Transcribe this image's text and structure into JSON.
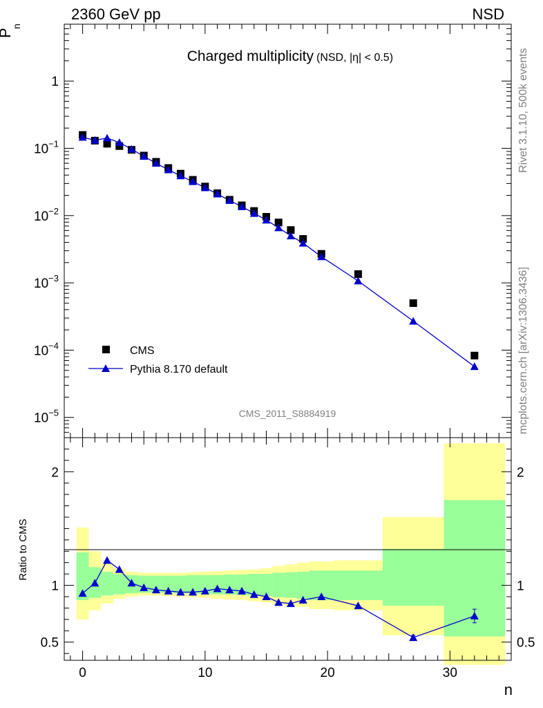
{
  "header": {
    "left": "2360 GeV pp",
    "right": "NSD"
  },
  "side_labels": {
    "rivet": "Rivet 3.1.10,  500k events",
    "mcplots": "mcplots.cern.ch [arXiv:1306.3436]"
  },
  "chart_data": [
    {
      "type": "scatter",
      "title": "Charged multiplicity",
      "subtitle": "(NSD, |η| < 0.5)",
      "ylabel": "P_n",
      "xlim": [
        -1.5,
        35
      ],
      "ylim": [
        5e-06,
        7
      ],
      "yscale": "log",
      "ytick_labels": [
        "1",
        "10^-1",
        "10^-2",
        "10^-3",
        "10^-4",
        "10^-5"
      ],
      "watermark": "CMS_2011_S8884919",
      "legend_position": "bottom-left",
      "series": [
        {
          "name": "CMS",
          "marker": "square",
          "color": "#000000",
          "x": [
            0,
            1,
            2,
            3,
            4,
            5,
            6,
            7,
            8,
            9,
            10,
            11,
            12,
            13,
            14,
            15,
            16,
            17,
            18,
            19.5,
            22.5,
            27,
            32
          ],
          "y": [
            0.158,
            0.13,
            0.117,
            0.108,
            0.095,
            0.078,
            0.063,
            0.051,
            0.042,
            0.034,
            0.027,
            0.0215,
            0.0172,
            0.0142,
            0.0117,
            0.0096,
            0.0079,
            0.0061,
            0.0045,
            0.0027,
            0.00135,
            0.0005,
            8.3e-05
          ]
        },
        {
          "name": "Pythia 8.170 default",
          "marker": "triangle",
          "color": "#0000cc",
          "x": [
            0,
            1,
            2,
            3,
            4,
            5,
            6,
            7,
            8,
            9,
            10,
            11,
            12,
            13,
            14,
            15,
            16,
            17,
            18,
            19.5,
            22.5,
            27,
            32
          ],
          "y": [
            0.146,
            0.132,
            0.142,
            0.122,
            0.097,
            0.076,
            0.06,
            0.048,
            0.039,
            0.032,
            0.026,
            0.021,
            0.0168,
            0.0136,
            0.0108,
            0.0086,
            0.0066,
            0.005,
            0.0039,
            0.00245,
            0.00107,
            0.00027,
            5.7e-05
          ]
        }
      ]
    },
    {
      "type": "line",
      "ylabel": "Ratio to CMS",
      "xlabel": "n",
      "xlim": [
        -1.5,
        35
      ],
      "ylim": [
        0.34,
        2.3
      ],
      "yticks": [
        0.5,
        1,
        2
      ],
      "ytick_labels": [
        "0.5",
        "1",
        "2"
      ],
      "xticks": [
        0,
        10,
        20,
        30
      ],
      "xtick_labels": [
        "0",
        "10",
        "20",
        "30"
      ],
      "bands": [
        {
          "x0": -0.5,
          "x1": 0.5,
          "stat": [
            0.87,
            1.29
          ],
          "total": [
            0.7,
            1.51
          ]
        },
        {
          "x0": 0.5,
          "x1": 1.5,
          "stat": [
            0.89,
            1.16
          ],
          "total": [
            0.78,
            1.3
          ]
        },
        {
          "x0": 1.5,
          "x1": 2.5,
          "stat": [
            0.91,
            1.12
          ],
          "total": [
            0.84,
            1.2
          ]
        },
        {
          "x0": 2.5,
          "x1": 3.5,
          "stat": [
            0.92,
            1.1
          ],
          "total": [
            0.88,
            1.15
          ]
        },
        {
          "x0": 3.5,
          "x1": 4.5,
          "stat": [
            0.93,
            1.09
          ],
          "total": [
            0.9,
            1.12
          ]
        },
        {
          "x0": 4.5,
          "x1": 5.5,
          "stat": [
            0.935,
            1.085
          ],
          "total": [
            0.91,
            1.11
          ]
        },
        {
          "x0": 5.5,
          "x1": 6.5,
          "stat": [
            0.935,
            1.085
          ],
          "total": [
            0.91,
            1.11
          ]
        },
        {
          "x0": 6.5,
          "x1": 7.5,
          "stat": [
            0.935,
            1.085
          ],
          "total": [
            0.905,
            1.11
          ]
        },
        {
          "x0": 7.5,
          "x1": 8.5,
          "stat": [
            0.93,
            1.085
          ],
          "total": [
            0.9,
            1.11
          ]
        },
        {
          "x0": 8.5,
          "x1": 9.5,
          "stat": [
            0.93,
            1.09
          ],
          "total": [
            0.895,
            1.115
          ]
        },
        {
          "x0": 9.5,
          "x1": 10.5,
          "stat": [
            0.925,
            1.09
          ],
          "total": [
            0.89,
            1.12
          ]
        },
        {
          "x0": 10.5,
          "x1": 11.5,
          "stat": [
            0.92,
            1.09
          ],
          "total": [
            0.88,
            1.125
          ]
        },
        {
          "x0": 11.5,
          "x1": 12.5,
          "stat": [
            0.92,
            1.095
          ],
          "total": [
            0.875,
            1.13
          ]
        },
        {
          "x0": 12.5,
          "x1": 13.5,
          "stat": [
            0.915,
            1.095
          ],
          "total": [
            0.87,
            1.135
          ]
        },
        {
          "x0": 13.5,
          "x1": 14.5,
          "stat": [
            0.91,
            1.1
          ],
          "total": [
            0.86,
            1.14
          ]
        },
        {
          "x0": 14.5,
          "x1": 15.5,
          "stat": [
            0.905,
            1.1
          ],
          "total": [
            0.85,
            1.15
          ]
        },
        {
          "x0": 15.5,
          "x1": 16.5,
          "stat": [
            0.895,
            1.11
          ],
          "total": [
            0.83,
            1.17
          ]
        },
        {
          "x0": 16.5,
          "x1": 17.5,
          "stat": [
            0.89,
            1.115
          ],
          "total": [
            0.82,
            1.185
          ]
        },
        {
          "x0": 17.5,
          "x1": 18.5,
          "stat": [
            0.88,
            1.12
          ],
          "total": [
            0.81,
            1.2
          ]
        },
        {
          "x0": 18.5,
          "x1": 20.5,
          "stat": [
            0.87,
            1.13
          ],
          "total": [
            0.79,
            1.21
          ]
        },
        {
          "x0": 20.5,
          "x1": 24.5,
          "stat": [
            0.87,
            1.13
          ],
          "total": [
            0.78,
            1.22
          ]
        },
        {
          "x0": 24.5,
          "x1": 29.5,
          "stat": [
            0.82,
            1.32
          ],
          "total": [
            0.56,
            1.6
          ]
        },
        {
          "x0": 29.5,
          "x1": 34.5,
          "stat": [
            0.55,
            1.75
          ],
          "total": [
            0.3,
            2.25
          ]
        }
      ],
      "series": [
        {
          "name": "Pythia 8.170 default",
          "color": "#0000cc",
          "x": [
            0,
            1,
            2,
            3,
            4,
            5,
            6,
            7,
            8,
            9,
            10,
            11,
            12,
            13,
            14,
            15,
            16,
            17,
            18,
            19.5,
            22.5,
            27,
            32
          ],
          "y": [
            0.93,
            1.02,
            1.22,
            1.14,
            1.02,
            0.98,
            0.96,
            0.95,
            0.94,
            0.94,
            0.95,
            0.97,
            0.96,
            0.95,
            0.92,
            0.9,
            0.85,
            0.84,
            0.87,
            0.9,
            0.82,
            0.54,
            0.73
          ],
          "yerr": [
            0,
            0,
            0,
            0,
            0,
            0,
            0,
            0,
            0,
            0,
            0,
            0,
            0,
            0,
            0,
            0,
            0,
            0,
            0,
            0,
            0,
            0.02,
            0.06
          ]
        }
      ]
    }
  ]
}
